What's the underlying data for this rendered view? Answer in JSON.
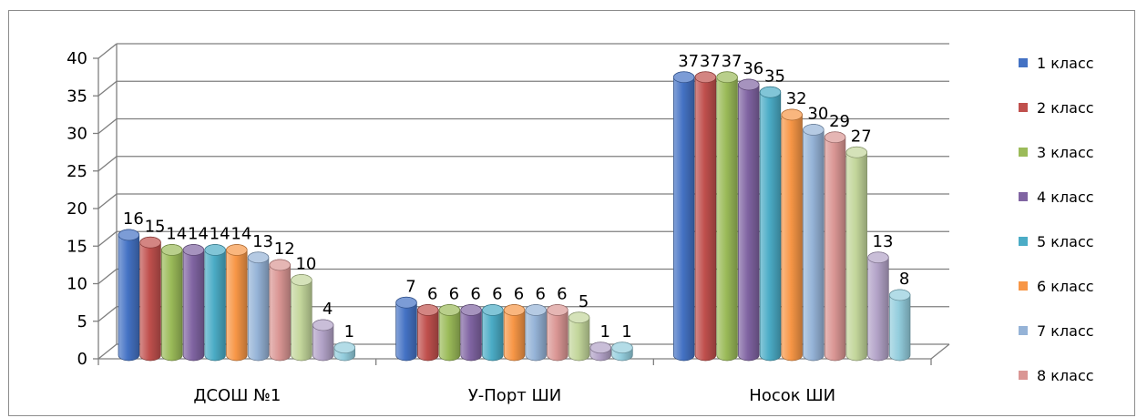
{
  "chart_data": {
    "type": "bar",
    "categories": [
      "ДСОШ №1",
      "У-Порт ШИ",
      "Носок ШИ"
    ],
    "series": [
      {
        "name": "1 класс",
        "color": "#4472C4",
        "values": [
          16,
          7,
          37
        ]
      },
      {
        "name": "2 класс",
        "color": "#C0504D",
        "values": [
          15,
          6,
          37
        ]
      },
      {
        "name": "3 класс",
        "color": "#9BBB59",
        "values": [
          14,
          6,
          37
        ]
      },
      {
        "name": "4 класс",
        "color": "#8064A2",
        "values": [
          14,
          6,
          36
        ]
      },
      {
        "name": "5 класс",
        "color": "#4BACC6",
        "values": [
          14,
          6,
          35
        ]
      },
      {
        "name": "6 класс",
        "color": "#F79646",
        "values": [
          14,
          6,
          32
        ]
      },
      {
        "name": "7 класс",
        "color": "#95B3D7",
        "values": [
          13,
          6,
          30
        ]
      },
      {
        "name": "8 класс",
        "color": "#DA9694",
        "values": [
          12,
          6,
          29
        ]
      },
      {
        "name": "",
        "color": "#C3D69B",
        "values": [
          10,
          5,
          27
        ]
      },
      {
        "name": "",
        "color": "#B2A2C7",
        "values": [
          4,
          1,
          13
        ]
      },
      {
        "name": "",
        "color": "#93CDDD",
        "values": [
          1,
          1,
          8
        ]
      }
    ],
    "ylim": [
      0,
      40
    ],
    "yticks": [
      "0",
      "5",
      "10",
      "15",
      "20",
      "25",
      "30",
      "35",
      "40"
    ],
    "grid": true,
    "legend": "right",
    "title": "",
    "xlabel": "",
    "ylabel": ""
  }
}
